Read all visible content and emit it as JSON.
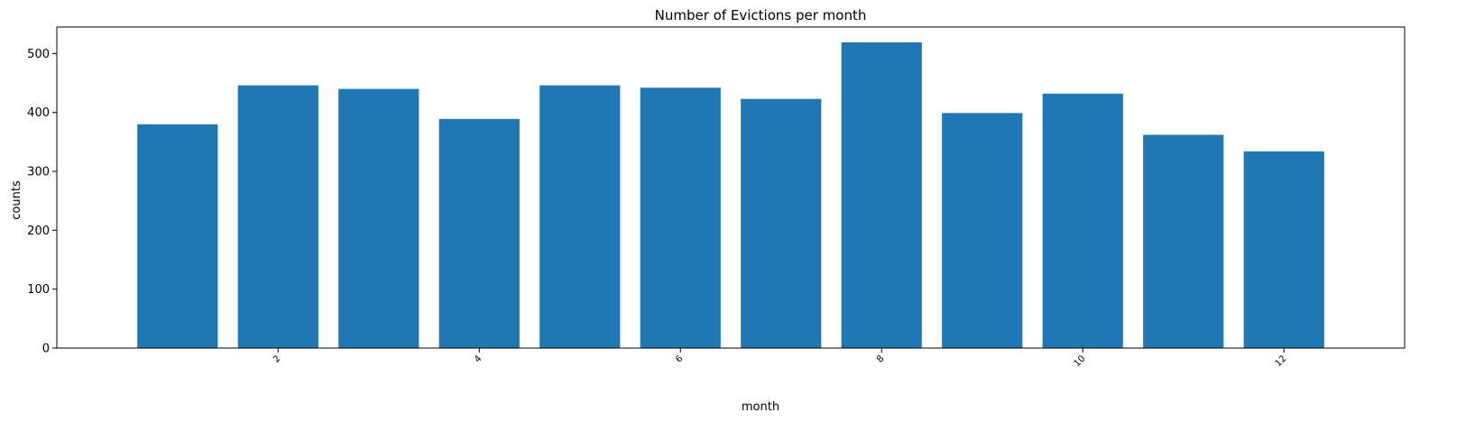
{
  "chart_data": {
    "type": "bar",
    "title": "Number of Evictions per month",
    "xlabel": "month",
    "ylabel": "counts",
    "x": [
      1,
      2,
      3,
      4,
      5,
      6,
      7,
      8,
      9,
      10,
      11,
      12
    ],
    "values": [
      380,
      446,
      440,
      389,
      446,
      442,
      423,
      519,
      399,
      432,
      362,
      334
    ],
    "xlim": [
      -0.2,
      13.2
    ],
    "ylim": [
      0,
      545
    ],
    "x_ticks": [
      2,
      4,
      6,
      8,
      10,
      12
    ],
    "y_ticks": [
      0,
      100,
      200,
      300,
      400,
      500
    ],
    "x_tick_rotation_deg": 45,
    "bar_color": "#1f77b4",
    "grid": false,
    "legend": "none"
  }
}
